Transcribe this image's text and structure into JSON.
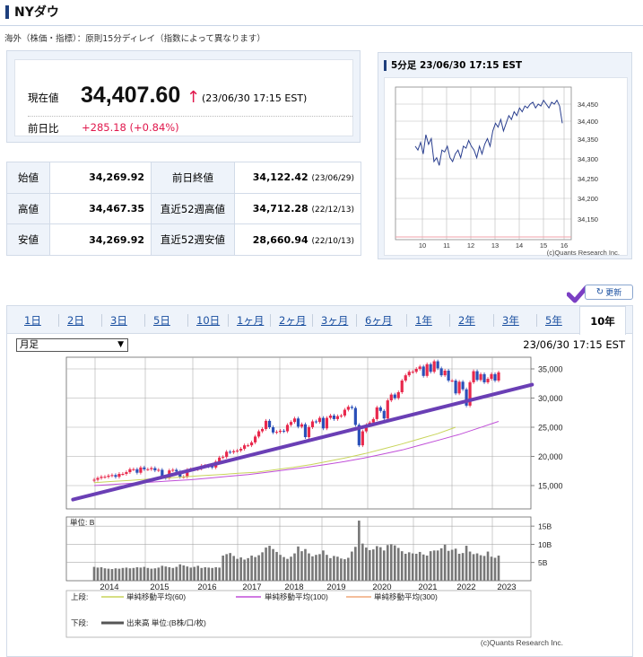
{
  "title": "NYダウ",
  "note": "海外（株価・指標）：原則15分ディレイ（指数によって異なります）",
  "quote": {
    "current_label": "現在値",
    "price": "34,407.60",
    "arrow": "↑",
    "datetime": "(23/06/30 17:15 EST)",
    "prev_label": "前日比",
    "change": "+285.18 (+0.84%)"
  },
  "stats": {
    "rows": [
      {
        "label1": "始値",
        "value1": "34,269.92",
        "label2": "前日終値",
        "value2": "34,122.42",
        "date2": "(23/06/29)"
      },
      {
        "label1": "高値",
        "value1": "34,467.35",
        "label2": "直近52週高値",
        "value2": "34,712.28",
        "date2": "(22/12/13)"
      },
      {
        "label1": "安値",
        "value1": "34,269.92",
        "label2": "直近52週安値",
        "value2": "28,660.94",
        "date2": "(22/10/13)"
      }
    ]
  },
  "mini": {
    "title": "5分足 23/06/30 17:15 EST",
    "yticks": [
      "34,450",
      "34,400",
      "34,350",
      "34,300",
      "34,250",
      "34,200",
      "34,150"
    ],
    "xticks": [
      "10",
      "11",
      "12",
      "13",
      "14",
      "15",
      "16"
    ],
    "credit": "(c)Quants Research Inc."
  },
  "refresh_label": "更新",
  "tabs": [
    "1日",
    "2日",
    "3日",
    "5日",
    "10日",
    "1ヶ月",
    "2ヶ月",
    "3ヶ月",
    "6ヶ月",
    "1年",
    "2年",
    "3年",
    "5年",
    "10年"
  ],
  "active_tab": "10年",
  "period_select": "月足",
  "chart_datetime": "23/06/30 17:15 EST",
  "colors": {
    "ma60": "#c8d45a",
    "ma100": "#c04ed8",
    "ma300": "#f0a878",
    "trend": "#6a3fb5",
    "check": "#7b3fc4",
    "up": "#e8284c",
    "down": "#2a4fb8"
  },
  "chart_data": {
    "type": "bar",
    "title": "",
    "yticks": [
      "35,000",
      "30,000",
      "25,000",
      "20,000",
      "15,000"
    ],
    "ylim": [
      11000,
      37000
    ],
    "years": [
      "2014",
      "2015",
      "2016",
      "2017",
      "2018",
      "2019",
      "2020",
      "2021",
      "2022",
      "2023"
    ],
    "vol_unit": "単位: B",
    "vol_ticks": [
      "15B",
      "10B",
      "5B"
    ],
    "legend_upper_prefix": "上段:",
    "legend_lower_prefix": "下段:",
    "legend_ma60": "単純移動平均(60)",
    "legend_ma100": "単純移動平均(100)",
    "legend_ma300": "単純移動平均(300)",
    "legend_volume": "出来高 単位:(B株/口/枚)",
    "credit": "(c)Quants Research Inc.",
    "monthly_close": [
      16000,
      16300,
      16500,
      16500,
      16700,
      16800,
      16500,
      17000,
      17000,
      17300,
      17800,
      17800,
      17200,
      18100,
      17800,
      17800,
      18000,
      17600,
      17700,
      16500,
      16300,
      17600,
      17700,
      17400,
      16500,
      16500,
      17700,
      17800,
      17800,
      17900,
      18400,
      18400,
      18300,
      18100,
      19100,
      19800,
      19900,
      20800,
      20700,
      20900,
      21000,
      21300,
      21900,
      21900,
      22400,
      23400,
      24300,
      24700,
      26100,
      25000,
      24100,
      24200,
      24400,
      24300,
      25400,
      25900,
      26500,
      25100,
      25500,
      23300,
      25000,
      26000,
      25900,
      26600,
      24800,
      26600,
      27000,
      26400,
      26900,
      27000,
      28000,
      28500,
      28300,
      25400,
      21900,
      24300,
      25400,
      25800,
      26400,
      28400,
      27800,
      26500,
      29600,
      30600,
      30000,
      31000,
      33000,
      33900,
      34500,
      34500,
      35000,
      35400,
      33800,
      35800,
      34500,
      36300,
      35100,
      33900,
      34700,
      33000,
      33000,
      30800,
      32800,
      31500,
      28700,
      32700,
      34600,
      33100,
      34100,
      32700,
      33300,
      34100,
      33000,
      34400
    ],
    "ma60": [
      15500,
      15700,
      15900,
      16100,
      16300,
      16500,
      16700,
      16900,
      17100,
      17300,
      17700,
      18100,
      18600,
      19200,
      19800,
      20500,
      21300,
      22100,
      23000,
      23900,
      25000
    ],
    "ma100": [
      15000,
      15200,
      15400,
      15600,
      15800,
      16000,
      16300,
      16600,
      16900,
      17300,
      17700,
      18100,
      18600,
      19100,
      19700,
      20400,
      21100,
      22000,
      22900,
      23800,
      24900,
      26000
    ],
    "trendline": [
      [
        2013.5,
        12600
      ],
      [
        2023.9,
        32300
      ]
    ],
    "volume": [
      3.8,
      3.6,
      3.7,
      3.4,
      3.3,
      3.2,
      3.4,
      3.3,
      3.5,
      3.6,
      3.4,
      3.5,
      3.7,
      3.6,
      3.8,
      3.5,
      3.3,
      3.4,
      3.6,
      4.1,
      3.9,
      3.7,
      3.5,
      3.8,
      4.5,
      4.2,
      3.9,
      3.6,
      3.8,
      4.1,
      3.5,
      3.7,
      3.6,
      3.5,
      3.7,
      3.6,
      6.9,
      7.3,
      7.6,
      6.8,
      6.0,
      6.4,
      5.8,
      6.2,
      6.9,
      6.5,
      7.0,
      7.8,
      9.1,
      9.6,
      8.7,
      7.9,
      7.1,
      6.5,
      6.0,
      6.6,
      7.5,
      9.4,
      8.1,
      8.7,
      7.5,
      6.7,
      7.1,
      7.3,
      8.3,
      7.1,
      6.2,
      6.8,
      6.6,
      6.1,
      5.9,
      6.3,
      8.0,
      9.3,
      16.5,
      10.2,
      9.1,
      8.4,
      8.6,
      9.5,
      9.2,
      8.3,
      9.8,
      10.0,
      9.7,
      9.0,
      8.1,
      7.4,
      7.8,
      7.5,
      7.4,
      7.9,
      7.2,
      6.9,
      8.1,
      8.3,
      8.3,
      8.9,
      9.9,
      8.2,
      8.5,
      8.8,
      7.4,
      7.6,
      9.6,
      8.0,
      7.3,
      7.5,
      7.0,
      6.8,
      8.0,
      6.6,
      6.3,
      6.9
    ]
  }
}
